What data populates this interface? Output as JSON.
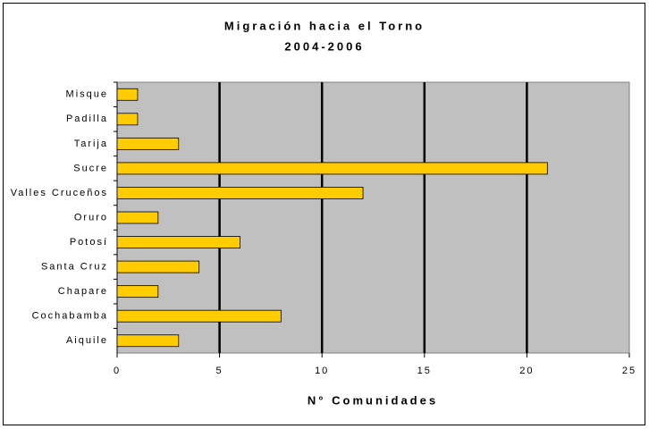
{
  "chart_data": {
    "type": "bar",
    "orientation": "horizontal",
    "title": "Migración hacia el Torno",
    "subtitle": "2004-2006",
    "x_label": "N° Comunidades",
    "categories": [
      "Misque",
      "Padilla",
      "Tarija",
      "Sucre",
      "Valles Cruceños",
      "Oruro",
      "Potosí",
      "Santa Cruz",
      "Chapare",
      "Cochabamba",
      "Aiquile"
    ],
    "values": [
      1,
      1,
      3,
      21,
      12,
      2,
      6,
      4,
      2,
      8,
      3
    ],
    "color": "#ffcc00",
    "xlim": [
      0,
      25
    ],
    "xticks": [
      0,
      5,
      10,
      15,
      20,
      25
    ],
    "grid": true
  }
}
